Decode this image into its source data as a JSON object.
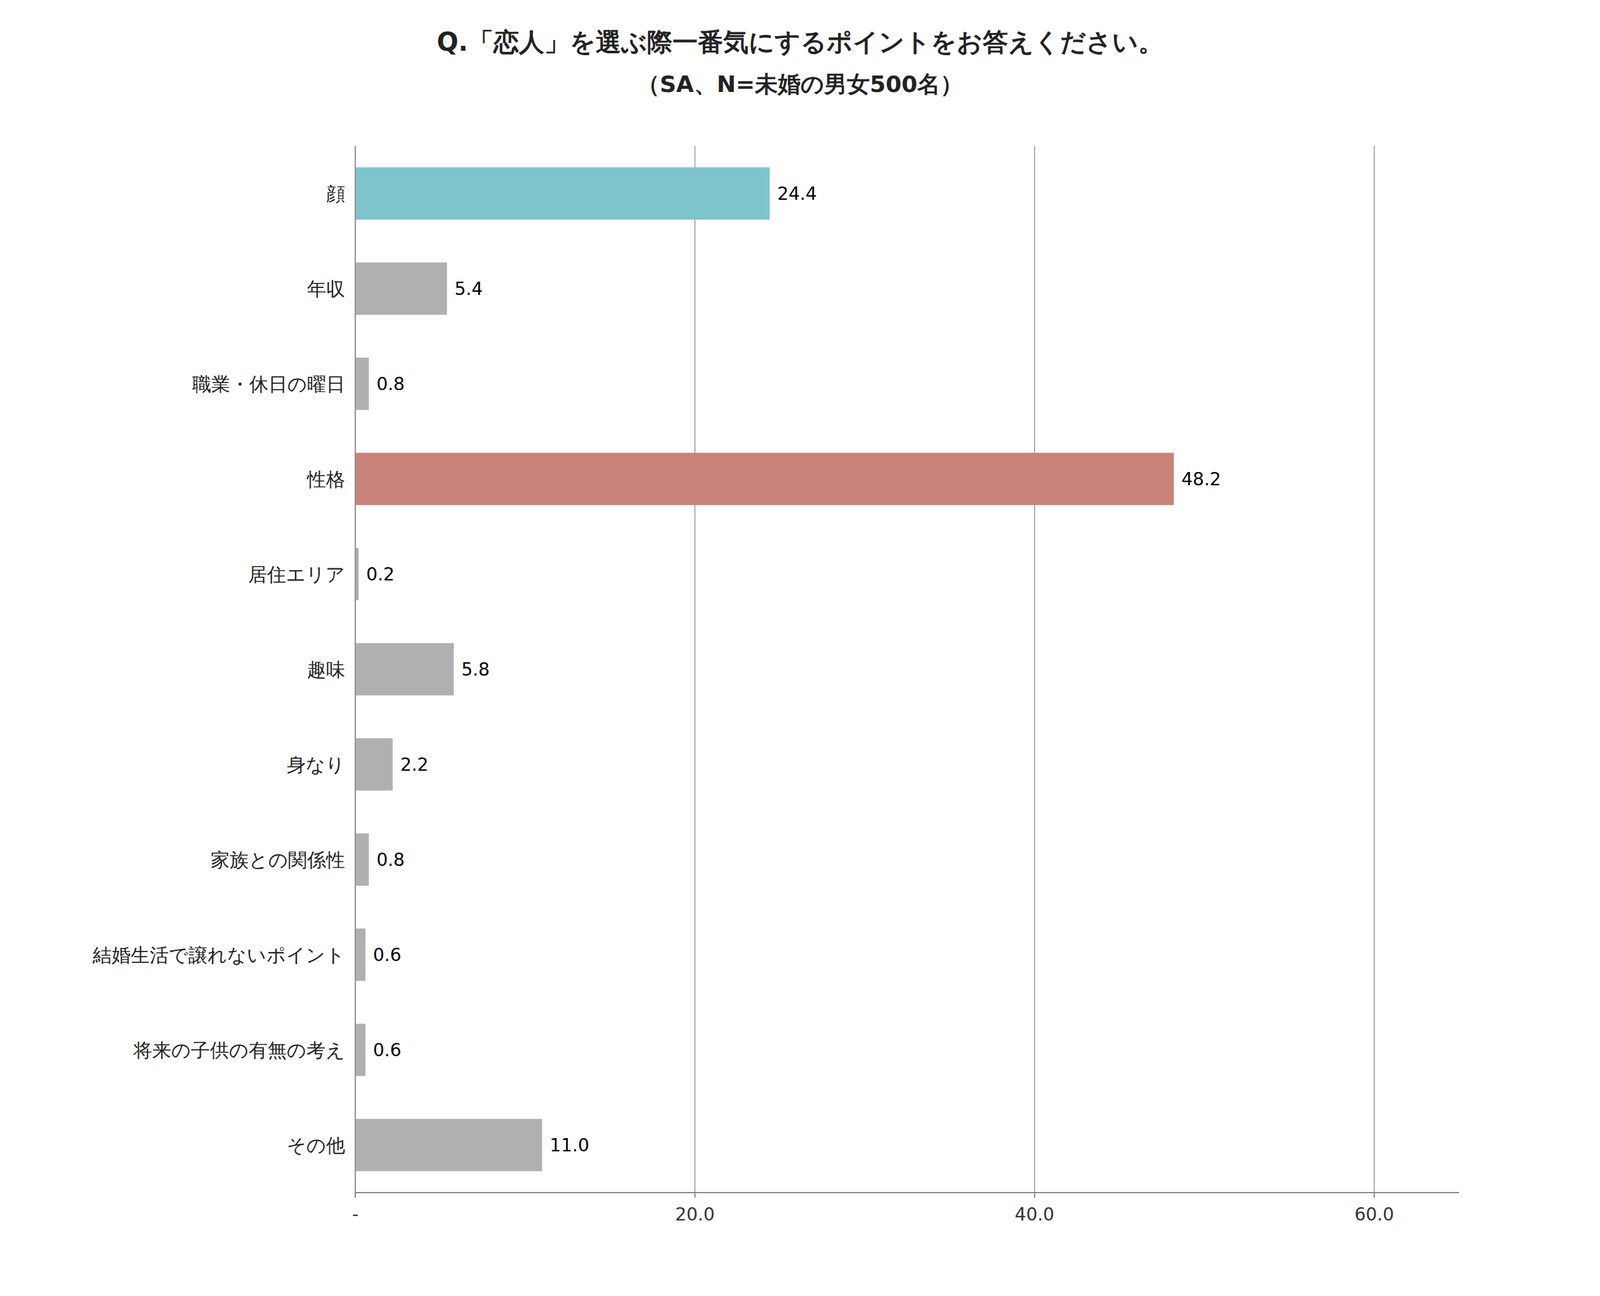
{
  "chart_data": {
    "type": "bar",
    "orientation": "horizontal",
    "title": "Q.「恋人」を選ぶ際一番気にするポイントをお答えください。",
    "subtitle": "（SA、N=未婚の男女500名）",
    "categories": [
      "顔",
      "年収",
      "職業・休日の曜日",
      "性格",
      "居住エリア",
      "趣味",
      "身なり",
      "家族との関係性",
      "結婚生活で譲れないポイント",
      "将来の子供の有無の考え",
      "その他"
    ],
    "values": [
      24.4,
      5.4,
      0.8,
      48.2,
      0.2,
      5.8,
      2.2,
      0.8,
      0.6,
      0.6,
      11.0
    ],
    "value_labels": [
      "24.4",
      "5.4",
      "0.8",
      "48.2",
      "0.2",
      "5.8",
      "2.2",
      "0.8",
      "0.6",
      "0.6",
      "11.0"
    ],
    "colors": [
      "#7fc4cd",
      "#b0b0b0",
      "#b0b0b0",
      "#c9837a",
      "#b0b0b0",
      "#b0b0b0",
      "#b0b0b0",
      "#b0b0b0",
      "#b0b0b0",
      "#b0b0b0",
      "#b0b0b0"
    ],
    "xlim": [
      0,
      65
    ],
    "xticks": [
      {
        "value": 0,
        "label": "-"
      },
      {
        "value": 20,
        "label": "20.0"
      },
      {
        "value": 40,
        "label": "40.0"
      },
      {
        "value": 60,
        "label": "60.0"
      }
    ],
    "grid": true,
    "data_labels": true
  }
}
